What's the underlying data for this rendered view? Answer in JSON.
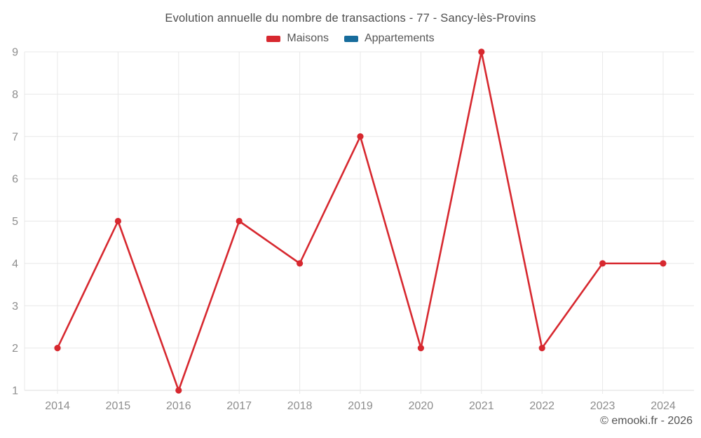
{
  "chart_data": {
    "type": "line",
    "title": "Evolution annuelle du nombre de transactions - 77 - Sancy-lès-Provins",
    "categories": [
      "2014",
      "2015",
      "2016",
      "2017",
      "2018",
      "2019",
      "2020",
      "2021",
      "2022",
      "2023",
      "2024"
    ],
    "series": [
      {
        "name": "Maisons",
        "color": "#d7282f",
        "values": [
          2,
          5,
          1,
          5,
          4,
          7,
          2,
          9,
          2,
          4,
          4
        ]
      },
      {
        "name": "Appartements",
        "color": "#176c9c",
        "values": []
      }
    ],
    "xlabel": "",
    "ylabel": "",
    "ylim": [
      1,
      9
    ],
    "yticks": [
      1,
      2,
      3,
      4,
      5,
      6,
      7,
      8,
      9
    ],
    "grid": true,
    "legend_position": "top",
    "colors": {
      "grid": "#e8e8e8",
      "axis": "#dcdcdc",
      "tick_text": "#8d8d8d"
    },
    "footer": "© emooki.fr - 2026"
  }
}
